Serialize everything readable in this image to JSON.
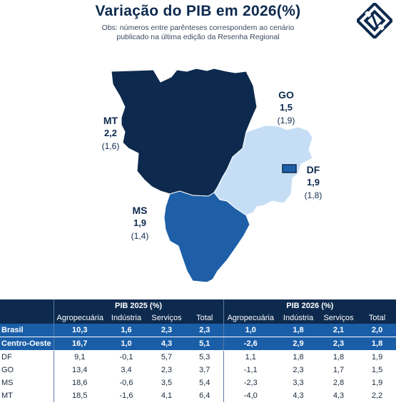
{
  "title": "Variação do PIB em 2026(%)",
  "subtitle": "Obs: números entre parênteses correspondem ao cenário publicado na última edição da Resenha Regional",
  "map": {
    "regions": [
      {
        "key": "MT",
        "value": "2,2",
        "previous": "(1,6)",
        "color": "#0d2a4e"
      },
      {
        "key": "GO",
        "value": "1,5",
        "previous": "(1,9)",
        "color": "#c5def5"
      },
      {
        "key": "DF",
        "value": "1,9",
        "previous": "(1,8)",
        "color": "#1e5fa8"
      },
      {
        "key": "MS",
        "value": "1,9",
        "previous": "(1,4)",
        "color": "#1e5fa8"
      }
    ]
  },
  "table": {
    "group_2025": "PIB 2025 (%)",
    "group_2026": "PIB 2026 (%)",
    "columns": [
      "Agropecuária",
      "Indústria",
      "Serviços",
      "Total"
    ],
    "rows": [
      {
        "name": "Brasil",
        "v2025": [
          "10,3",
          "1,6",
          "2,3",
          "2,3"
        ],
        "v2026": [
          "1,0",
          "1,8",
          "2,1",
          "2,0"
        ]
      },
      {
        "name": "Centro-Oeste",
        "v2025": [
          "16,7",
          "1,0",
          "4,3",
          "5,1"
        ],
        "v2026": [
          "-2,6",
          "2,9",
          "2,3",
          "1,8"
        ]
      },
      {
        "name": "DF",
        "v2025": [
          "9,1",
          "-0,1",
          "5,7",
          "5,3"
        ],
        "v2026": [
          "1,1",
          "1,8",
          "1,8",
          "1,9"
        ]
      },
      {
        "name": "GO",
        "v2025": [
          "13,4",
          "3,4",
          "2,3",
          "3,7"
        ],
        "v2026": [
          "-1,1",
          "2,3",
          "1,7",
          "1,5"
        ]
      },
      {
        "name": "MS",
        "v2025": [
          "18,6",
          "-0,6",
          "3,5",
          "5,4"
        ],
        "v2026": [
          "-2,3",
          "3,3",
          "2,8",
          "1,9"
        ]
      },
      {
        "name": "MT",
        "v2025": [
          "18,5",
          "-1,6",
          "4,1",
          "6,4"
        ],
        "v2026": [
          "-4,0",
          "4,3",
          "4,3",
          "2,2"
        ]
      }
    ]
  },
  "chart_data": {
    "type": "table",
    "title": "Variação do PIB em 2026(%)",
    "map_values_2026": {
      "MT": 2.2,
      "GO": 1.5,
      "DF": 1.9,
      "MS": 1.9
    },
    "map_previous_2026": {
      "MT": 1.6,
      "GO": 1.9,
      "DF": 1.8,
      "MS": 1.4
    },
    "columns": [
      "Agropecuária",
      "Indústria",
      "Serviços",
      "Total"
    ],
    "series": [
      {
        "name": "PIB 2025 (%)",
        "rows": {
          "Brasil": [
            10.3,
            1.6,
            2.3,
            2.3
          ],
          "Centro-Oeste": [
            16.7,
            1.0,
            4.3,
            5.1
          ],
          "DF": [
            9.1,
            -0.1,
            5.7,
            5.3
          ],
          "GO": [
            13.4,
            3.4,
            2.3,
            3.7
          ],
          "MS": [
            18.6,
            -0.6,
            3.5,
            5.4
          ],
          "MT": [
            18.5,
            -1.6,
            4.1,
            6.4
          ]
        }
      },
      {
        "name": "PIB 2026 (%)",
        "rows": {
          "Brasil": [
            1.0,
            1.8,
            2.1,
            2.0
          ],
          "Centro-Oeste": [
            -2.6,
            2.9,
            2.3,
            1.8
          ],
          "DF": [
            1.1,
            1.8,
            1.8,
            1.9
          ],
          "GO": [
            -1.1,
            2.3,
            1.7,
            1.5
          ],
          "MS": [
            -2.3,
            3.3,
            2.8,
            1.9
          ],
          "MT": [
            -4.0,
            4.3,
            4.3,
            2.2
          ]
        }
      }
    ]
  }
}
